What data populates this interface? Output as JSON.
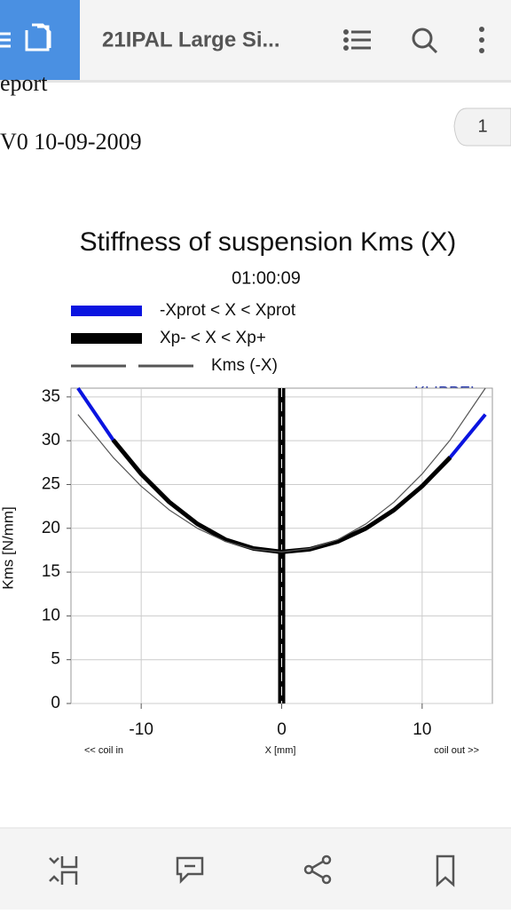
{
  "app_bar": {
    "title": "21IPAL Large Si..."
  },
  "document": {
    "line1": "eport",
    "line2": "V0 10-09-2009",
    "page_badge": "1"
  },
  "chart_data": {
    "type": "line",
    "title": "Stiffness of suspension Kms (X)",
    "subtitle": "01:00:09",
    "watermark": "KLIPPEL",
    "y_label": "Kms [N/mm]",
    "x_label": "X [mm]",
    "x_left_note": "<< coil in",
    "x_right_note": "coil out >>",
    "xlim": [
      -15,
      15
    ],
    "xticks": [
      -10,
      0,
      10
    ],
    "ylim": [
      0,
      36
    ],
    "yticks": [
      0,
      5,
      10,
      15,
      20,
      25,
      30,
      35
    ],
    "grid": true,
    "series": [
      {
        "name": "-Xprot < X < Xprot",
        "color": "#0a14e0",
        "width": 4,
        "x": [
          -14.5,
          -12,
          -10,
          -8,
          -6,
          -4,
          -2,
          0,
          2,
          4,
          6,
          8,
          10,
          12,
          14.5
        ],
        "values": [
          36,
          30.1,
          26.2,
          23,
          20.5,
          18.7,
          17.7,
          17.3,
          17.6,
          18.5,
          20,
          22.1,
          24.8,
          28.1,
          33
        ]
      },
      {
        "name": "Xp- < X < Xp+",
        "color": "#000000",
        "width": 5,
        "x": [
          -12,
          -10,
          -8,
          -6,
          -4,
          -2,
          0,
          2,
          4,
          6,
          8,
          10,
          12
        ],
        "values": [
          30.1,
          26.2,
          23,
          20.5,
          18.7,
          17.7,
          17.3,
          17.6,
          18.5,
          20,
          22.1,
          24.8,
          28.1
        ]
      },
      {
        "name": "Kms (-X)",
        "color": "#555555",
        "width": 1.2,
        "line_style": "dashed",
        "x": [
          -14.5,
          -12,
          -10,
          -8,
          -6,
          -4,
          -2,
          0,
          2,
          4,
          6,
          8,
          10,
          12,
          14.5
        ],
        "values": [
          33,
          28.1,
          24.8,
          22.1,
          20,
          18.5,
          17.6,
          17.3,
          17.7,
          18.7,
          20.5,
          23,
          26.2,
          30.1,
          36
        ]
      }
    ]
  }
}
